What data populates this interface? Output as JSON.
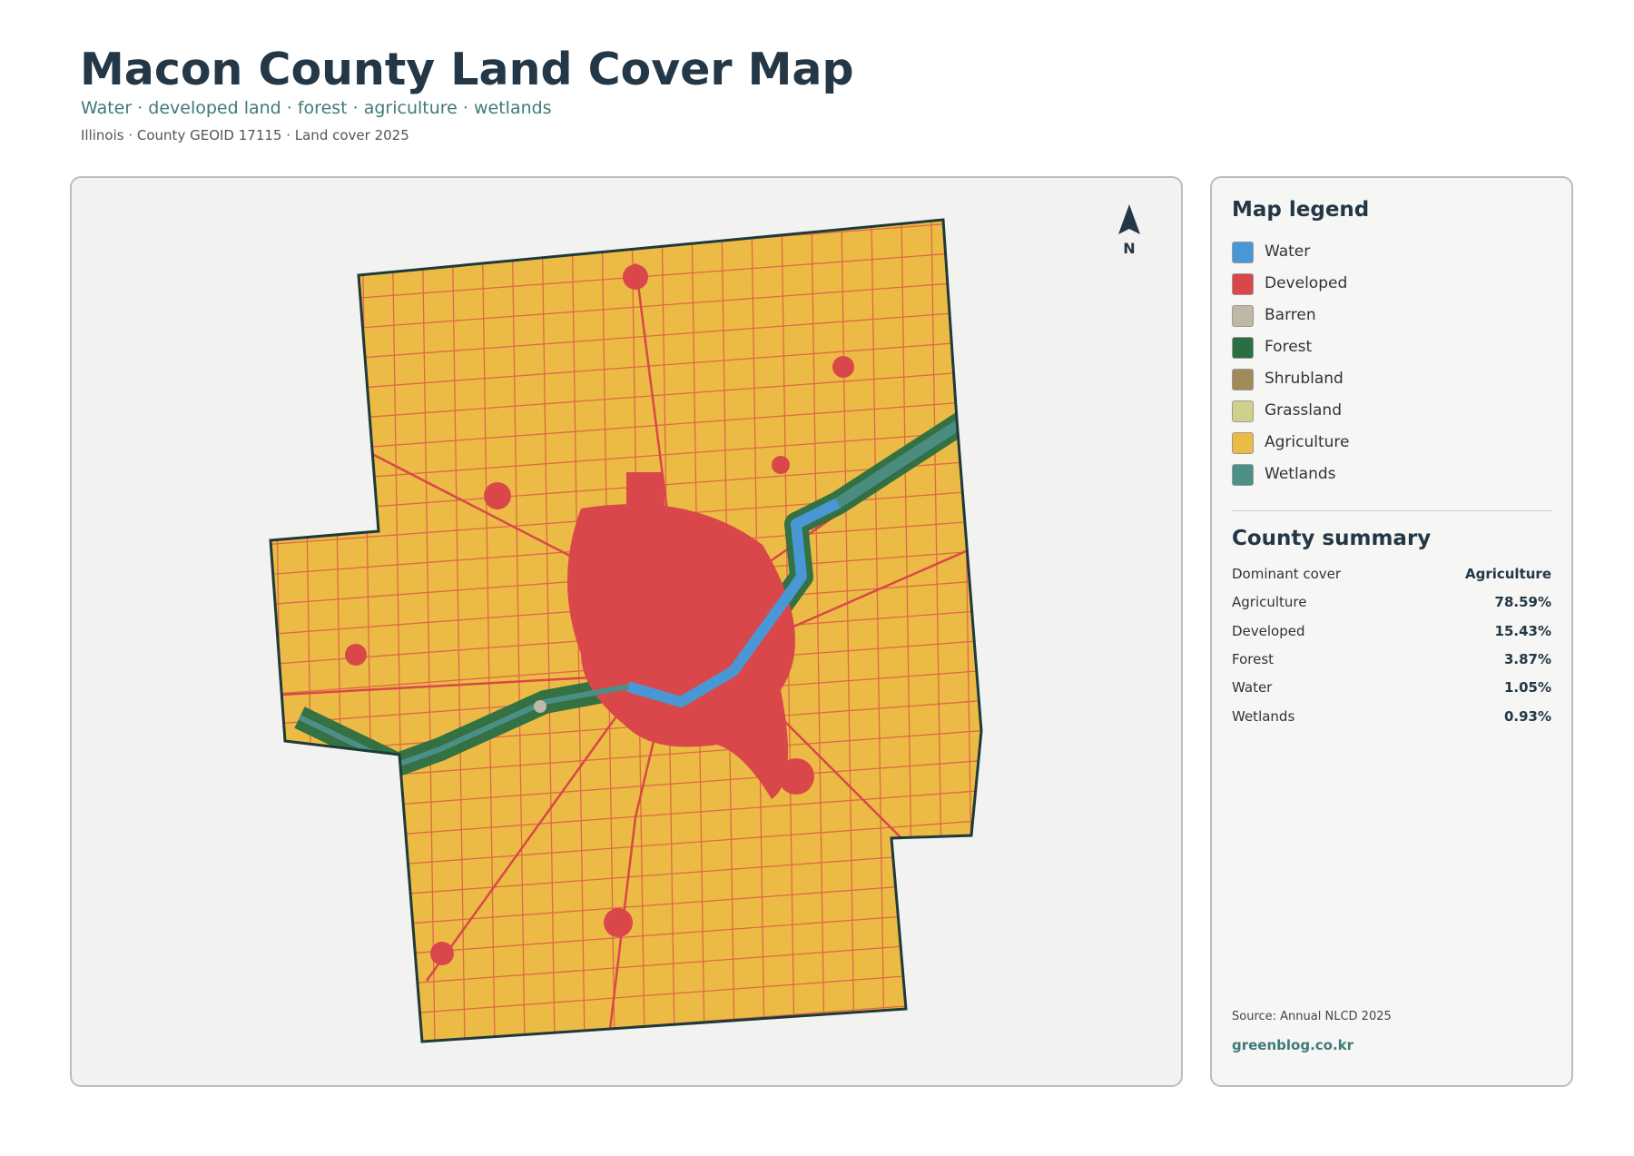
{
  "header": {
    "title": "Macon County Land Cover Map",
    "subtitle": "Water · developed land · forest · agriculture · wetlands",
    "meta": "Illinois · County GEOID 17115 · Land cover 2025"
  },
  "map": {
    "north_label": "N"
  },
  "legend": {
    "title": "Map legend",
    "items": [
      {
        "label": "Water",
        "color": "#4a97d6"
      },
      {
        "label": "Developed",
        "color": "#d9474a"
      },
      {
        "label": "Barren",
        "color": "#bfb8a6"
      },
      {
        "label": "Forest",
        "color": "#2a6e43"
      },
      {
        "label": "Shrubland",
        "color": "#a08a5a"
      },
      {
        "label": "Grassland",
        "color": "#cfd08c"
      },
      {
        "label": "Agriculture",
        "color": "#ecbb45"
      },
      {
        "label": "Wetlands",
        "color": "#4c8f87"
      }
    ]
  },
  "summary": {
    "title": "County summary",
    "rows": [
      [
        "Dominant cover",
        "Agriculture"
      ],
      [
        "Agriculture",
        "78.59%"
      ],
      [
        "Developed",
        "15.43%"
      ],
      [
        "Forest",
        "3.87%"
      ],
      [
        "Water",
        "1.05%"
      ],
      [
        "Wetlands",
        "0.93%"
      ]
    ]
  },
  "footer": {
    "source": "Source: Annual NLCD 2025",
    "site": "greenblog.co.kr"
  }
}
